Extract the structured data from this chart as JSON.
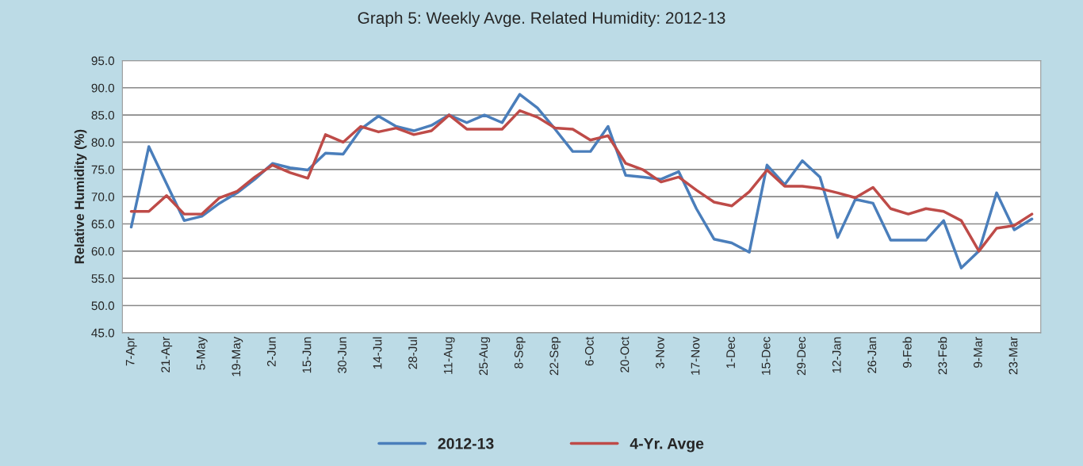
{
  "chart_data": {
    "type": "line",
    "title": "Graph 5: Weekly Avge. Related Humidity: 2012-13",
    "ylabel": "Relative Humidity (%)",
    "categories": [
      "7-Apr",
      null,
      "21-Apr",
      null,
      "5-May",
      null,
      "19-May",
      null,
      "2-Jun",
      null,
      "15-Jun",
      null,
      "30-Jun",
      null,
      "14-Jul",
      null,
      "28-Jul",
      null,
      "11-Aug",
      null,
      "25-Aug",
      null,
      "8-Sep",
      null,
      "22-Sep",
      null,
      "6-Oct",
      null,
      "20-Oct",
      null,
      "3-Nov",
      null,
      "17-Nov",
      null,
      "1-Dec",
      null,
      "15-Dec",
      null,
      "29-Dec",
      null,
      "12-Jan",
      null,
      "26-Jan",
      null,
      "9-Feb",
      null,
      "23-Feb",
      null,
      "9-Mar",
      null,
      "23-Mar",
      null
    ],
    "series": [
      {
        "name": "2012-13",
        "color": "#4a7ebb",
        "values": [
          64.4,
          79.2,
          72.4,
          65.6,
          66.4,
          68.8,
          70.7,
          73.2,
          76.1,
          75.3,
          74.9,
          78.0,
          77.8,
          82.4,
          84.8,
          82.9,
          82.1,
          83.1,
          85.0,
          83.6,
          85.0,
          83.6,
          88.8,
          86.3,
          82.4,
          78.3,
          78.3,
          82.9,
          73.9,
          73.6,
          73.2,
          74.6,
          67.8,
          62.2,
          61.5,
          59.8,
          75.8,
          72.2,
          76.6,
          73.6,
          62.5,
          69.5,
          68.8,
          62.0,
          62.0,
          62.0,
          65.6,
          56.9,
          60.0,
          70.7,
          63.9,
          65.9
        ]
      },
      {
        "name": "4-Yr. Avge",
        "color": "#be4b48",
        "values": [
          67.3,
          67.3,
          70.2,
          66.8,
          66.8,
          69.8,
          71.0,
          73.6,
          75.8,
          74.4,
          73.4,
          81.4,
          80.0,
          82.9,
          81.9,
          82.6,
          81.4,
          82.1,
          85.0,
          82.4,
          82.4,
          82.4,
          85.8,
          84.6,
          82.6,
          82.4,
          80.4,
          81.2,
          76.1,
          74.9,
          72.7,
          73.6,
          71.2,
          69.0,
          68.3,
          70.9,
          74.9,
          71.9,
          71.9,
          71.5,
          70.7,
          69.8,
          71.7,
          67.8,
          66.8,
          67.8,
          67.3,
          65.6,
          60.0,
          64.2,
          64.7,
          66.8
        ]
      }
    ],
    "ylim": [
      45,
      95
    ],
    "yticks": [
      {
        "value": 45,
        "label": "45.0"
      },
      {
        "value": 50,
        "label": "50.0"
      },
      {
        "value": 55,
        "label": "55.0"
      },
      {
        "value": 60,
        "label": "60.0"
      },
      {
        "value": 65,
        "label": "65.0"
      },
      {
        "value": 70,
        "label": "70.0"
      },
      {
        "value": 75,
        "label": "75.0"
      },
      {
        "value": 80,
        "label": "80.0"
      },
      {
        "value": 85,
        "label": "85.0"
      },
      {
        "value": 90,
        "label": "90.0"
      },
      {
        "value": 95,
        "label": "95.0"
      }
    ],
    "grid": "y",
    "legend": "bottom",
    "marker": "none",
    "line_style": "solid"
  }
}
